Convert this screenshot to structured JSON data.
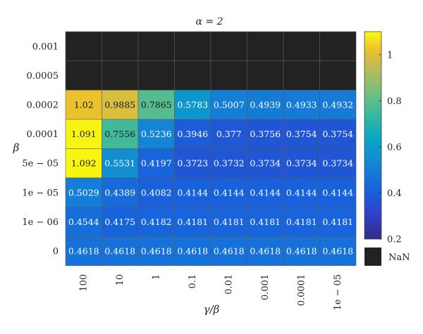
{
  "chart_data": {
    "type": "heatmap",
    "title": "α = 2",
    "xlabel": "γ/β",
    "ylabel": "β",
    "x_categories": [
      "100",
      "10",
      "1",
      "0.1",
      "0.01",
      "0.001",
      "0.0001",
      "1e − 05"
    ],
    "y_categories": [
      "0.001",
      "0.0005",
      "0.0002",
      "0.0001",
      "5e − 05",
      "1e − 05",
      "1e − 06",
      "0"
    ],
    "values": [
      [
        null,
        null,
        null,
        null,
        null,
        null,
        null,
        null
      ],
      [
        null,
        null,
        null,
        null,
        null,
        null,
        null,
        null
      ],
      [
        "1.02",
        "0.9885",
        "0.7865",
        "0.5783",
        "0.5007",
        "0.4939",
        "0.4933",
        "0.4932"
      ],
      [
        "1.091",
        "0.7556",
        "0.5236",
        "0.3946",
        "0.377",
        "0.3756",
        "0.3754",
        "0.3754"
      ],
      [
        "1.092",
        "0.5531",
        "0.4197",
        "0.3723",
        "0.3732",
        "0.3734",
        "0.3734",
        "0.3734"
      ],
      [
        "0.5029",
        "0.4389",
        "0.4082",
        "0.4144",
        "0.4144",
        "0.4144",
        "0.4144",
        "0.4144"
      ],
      [
        "0.4544",
        "0.4175",
        "0.4182",
        "0.4181",
        "0.4181",
        "0.4181",
        "0.4181",
        "0.4181"
      ],
      [
        "0.4618",
        "0.4618",
        "0.4618",
        "0.4618",
        "0.4618",
        "0.4618",
        "0.4618",
        "0.4618"
      ]
    ],
    "colorbar": {
      "range": [
        0.2,
        1.1
      ],
      "ticks": [
        "0.2",
        "0.4",
        "0.6",
        "0.8",
        "1"
      ],
      "colormap": "parula",
      "nan_label": "NaN",
      "nan_color": "#222222"
    }
  }
}
